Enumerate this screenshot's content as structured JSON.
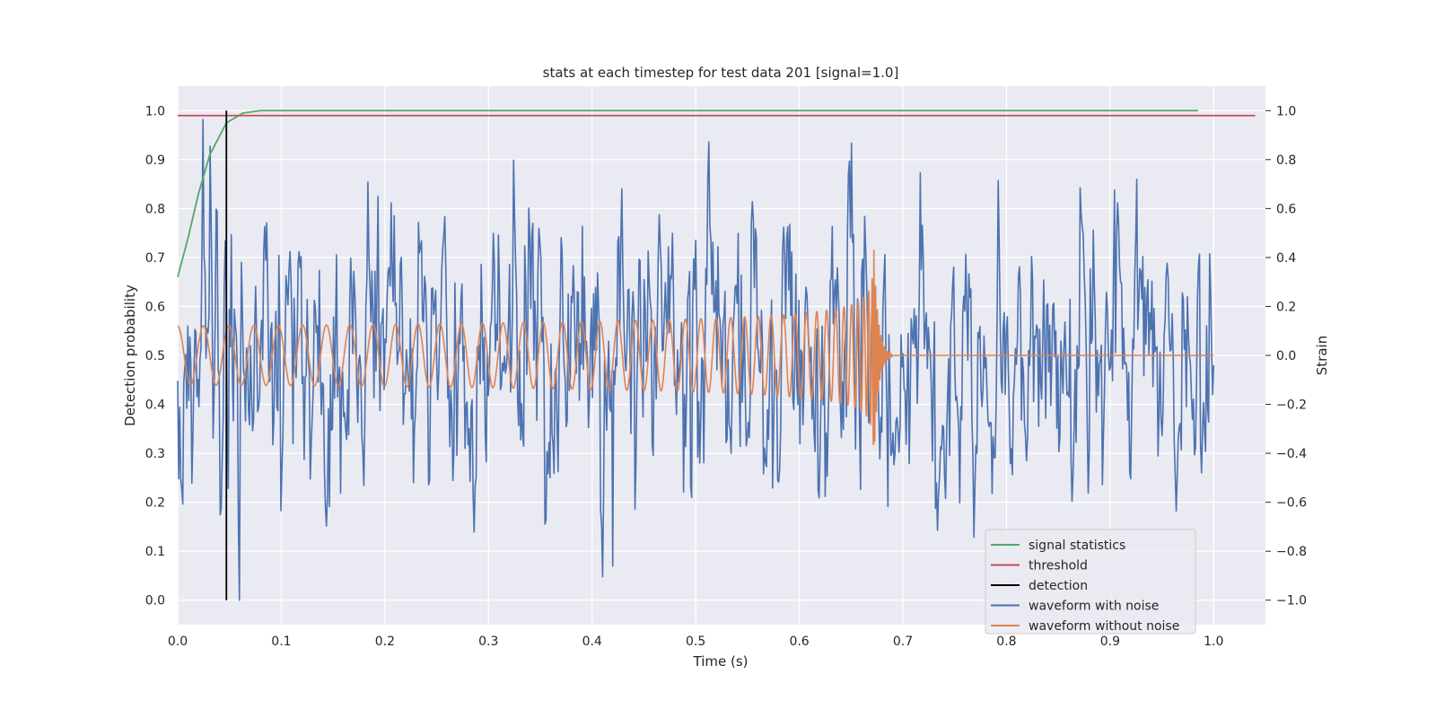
{
  "chart_data": {
    "type": "line",
    "title": "stats at each timestep for test data 201 [signal=1.0]",
    "xlabel": "Time (s)",
    "ylabel_left": "Detection probability",
    "ylabel_right": "Strain",
    "xlim": [
      0.0,
      1.05
    ],
    "ylim_left": [
      -0.05,
      1.05
    ],
    "ylim_right": [
      -1.1,
      1.1
    ],
    "x_ticks": [
      "0.0",
      "0.1",
      "0.2",
      "0.3",
      "0.4",
      "0.5",
      "0.6",
      "0.7",
      "0.8",
      "0.9",
      "1.0"
    ],
    "y_ticks_left": [
      "0.0",
      "0.1",
      "0.2",
      "0.3",
      "0.4",
      "0.5",
      "0.6",
      "0.7",
      "0.8",
      "0.9",
      "1.0"
    ],
    "y_ticks_right": [
      "−1.0",
      "−0.8",
      "−0.6",
      "−0.4",
      "−0.2",
      "0.0",
      "0.2",
      "0.4",
      "0.6",
      "0.8",
      "1.0"
    ],
    "grid": true,
    "legend_position": "lower-right",
    "background_color": "#eaeaf2",
    "series": [
      {
        "name": "signal statistics",
        "axis": "left",
        "color": "#55a868",
        "x": [
          0.0,
          0.01,
          0.02,
          0.031,
          0.047,
          0.063,
          0.08,
          0.1,
          0.2,
          0.4,
          0.6,
          0.8,
          0.985
        ],
        "y": [
          0.66,
          0.74,
          0.83,
          0.91,
          0.975,
          0.995,
          1.0,
          1.0,
          1.0,
          1.0,
          1.0,
          1.0,
          1.0
        ]
      },
      {
        "name": "threshold",
        "axis": "left",
        "color": "#c44e52",
        "x": [
          0.0,
          1.04
        ],
        "y": [
          0.99,
          0.99
        ]
      },
      {
        "name": "detection",
        "axis": "left",
        "color": "#000000",
        "x": [
          0.047,
          0.047
        ],
        "y": [
          0.0,
          1.0
        ]
      },
      {
        "name": "waveform with noise",
        "axis": "right",
        "color": "#4c72b0",
        "x_range": [
          0.0,
          1.0
        ],
        "amplitude_range": [
          -1.0,
          1.0
        ],
        "approx_std": 0.33,
        "num_points": 1024
      },
      {
        "name": "waveform without noise",
        "axis": "right",
        "color": "#dd8452",
        "x_range": [
          0.0,
          1.0
        ],
        "start_frequency_hz": 40,
        "initial_amplitude": 0.12,
        "peak_amplitude": 0.43,
        "merger_time": 0.672,
        "ringdown_end": 0.69
      }
    ]
  }
}
